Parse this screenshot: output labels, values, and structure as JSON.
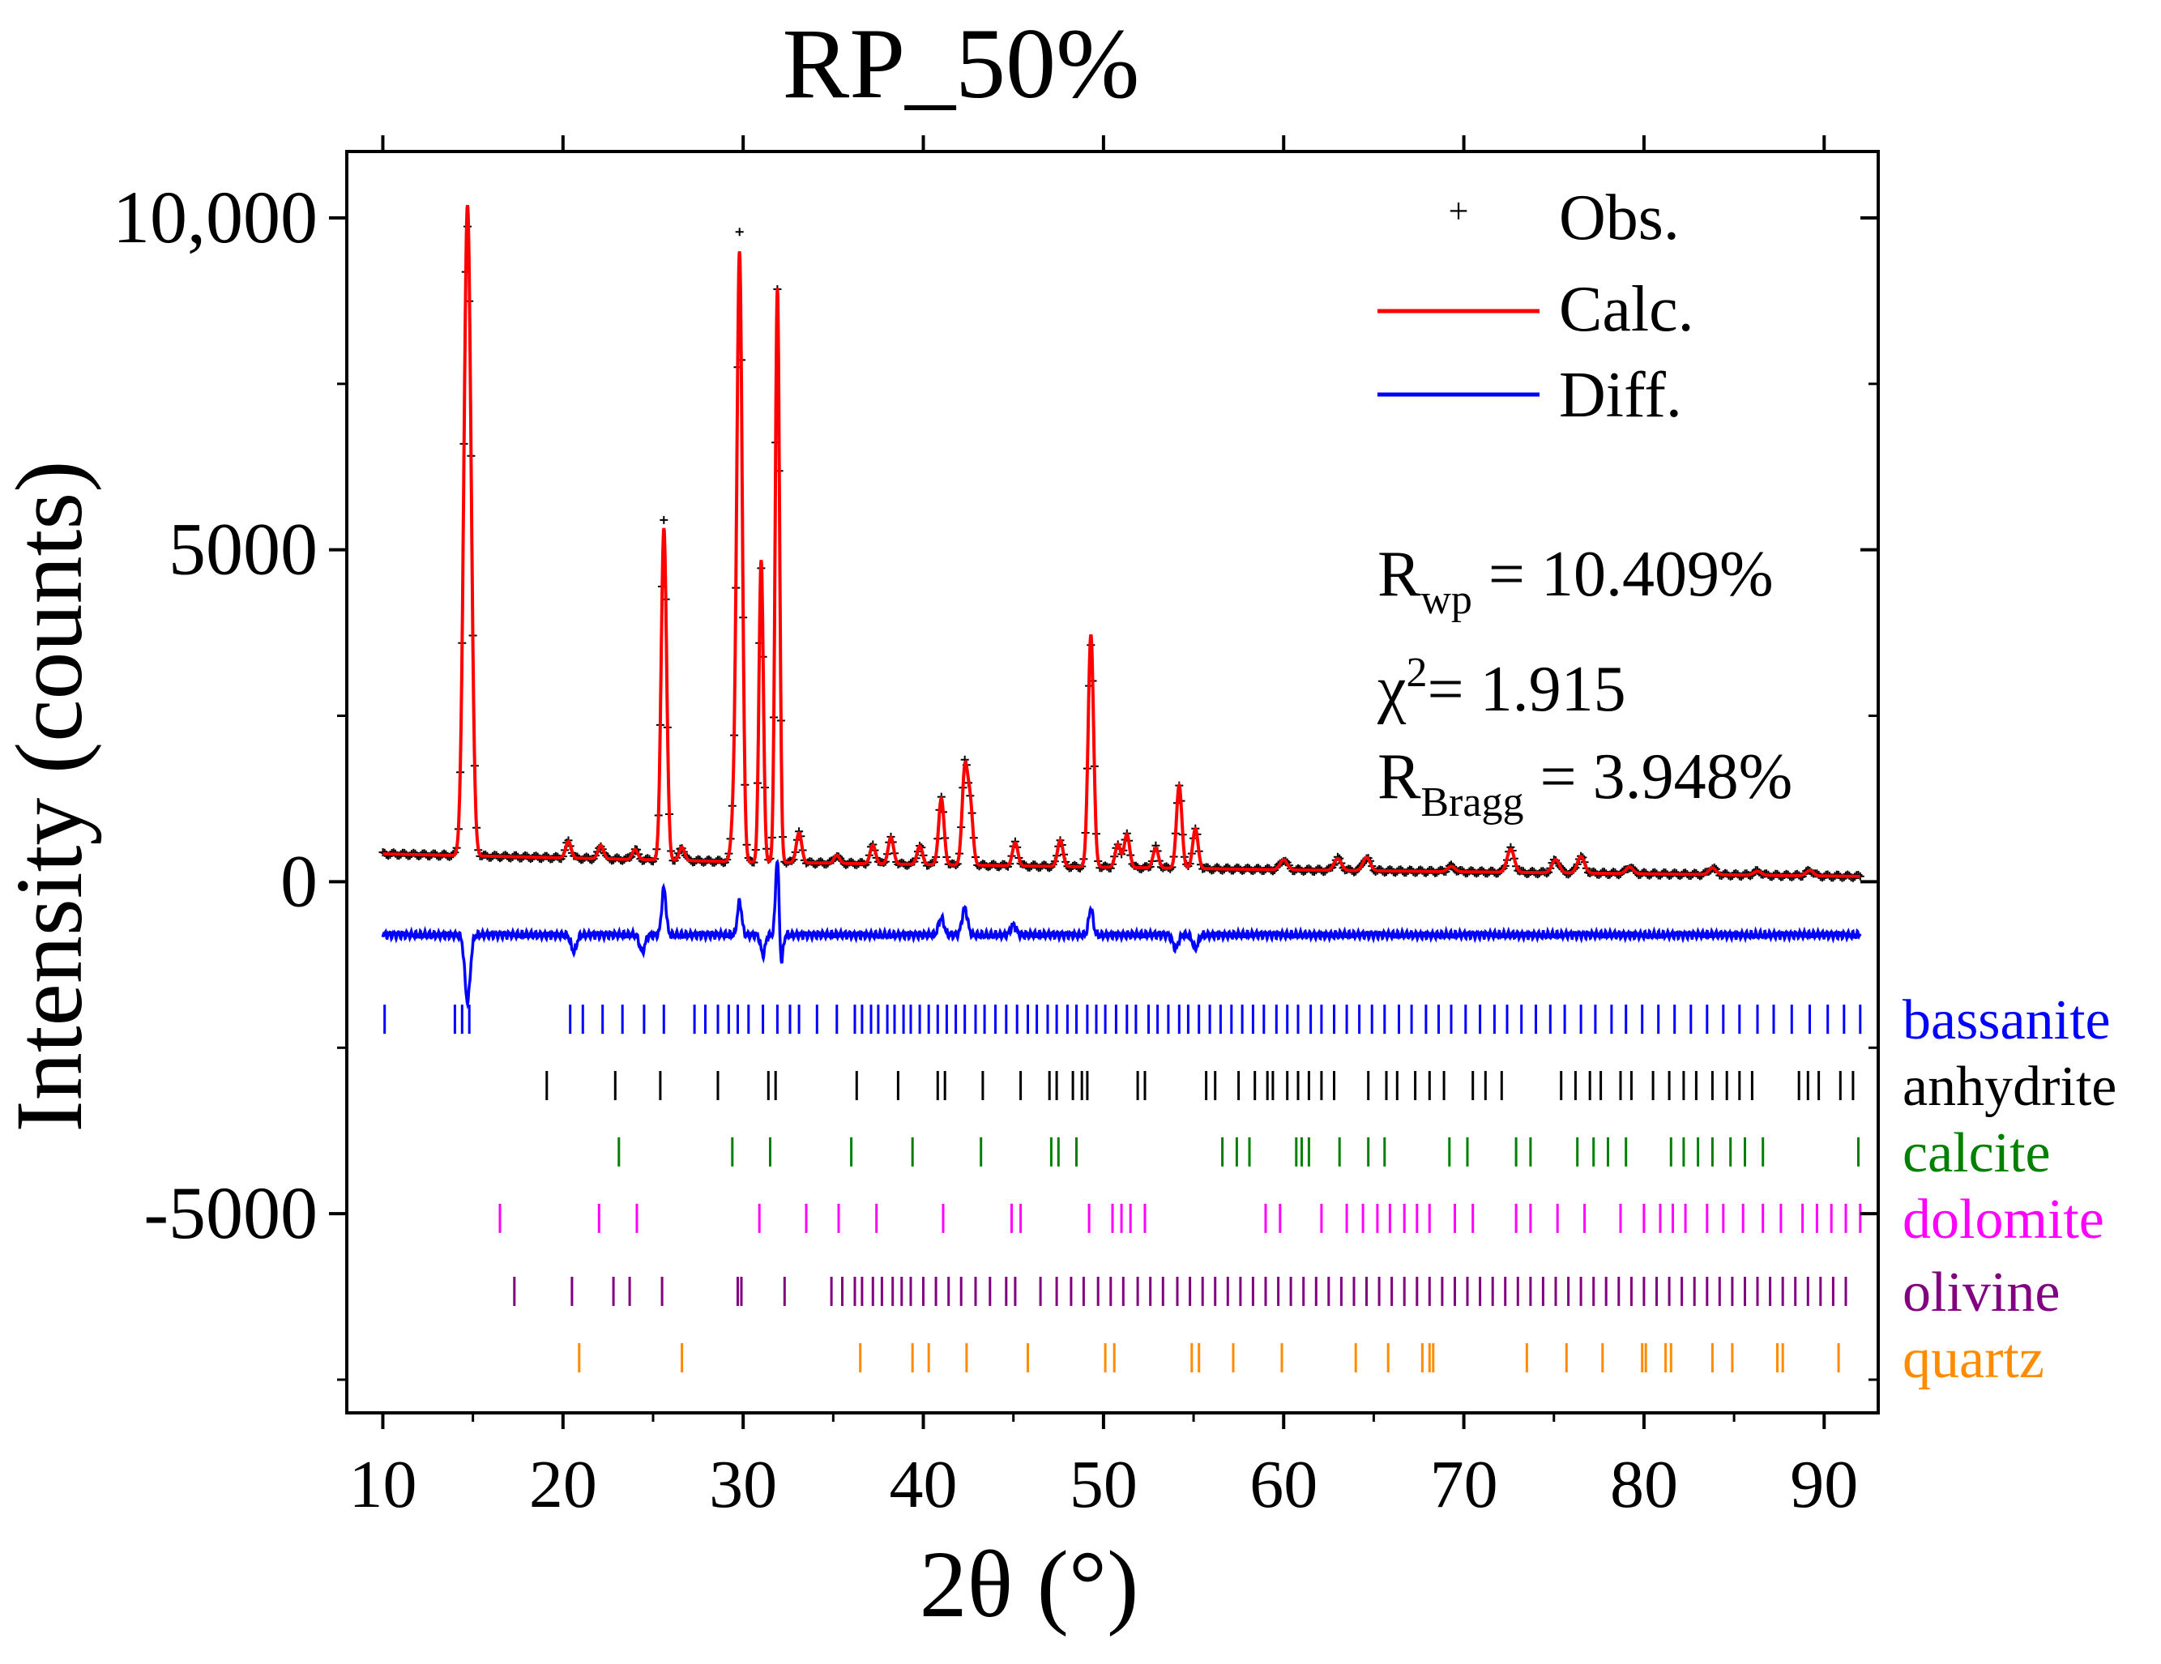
{
  "chart_data": {
    "type": "line",
    "title": "RP_50%",
    "xlabel": "2θ (°)",
    "ylabel": "Intensity (counts)",
    "xlim": [
      8,
      93
    ],
    "ylim": [
      -8000,
      11000
    ],
    "x_ticks": [
      "10",
      "20",
      "30",
      "40",
      "50",
      "60",
      "70",
      "80",
      "90"
    ],
    "x_tick_values": [
      10,
      20,
      30,
      40,
      50,
      60,
      70,
      80,
      90
    ],
    "y_ticks": [
      "10,000",
      "5000",
      "0",
      "-5000"
    ],
    "y_tick_values": [
      10000,
      5000,
      0,
      -5000
    ],
    "legend_position": "top-right",
    "series": [
      {
        "name": "Obs.",
        "color": "#000000",
        "marker": "+"
      },
      {
        "name": "Calc.",
        "color": "#ff0000"
      },
      {
        "name": "Diff.",
        "color": "#0000ff"
      }
    ],
    "annotations": {
      "rwp_main": "R",
      "rwp_sub": "wp",
      "rwp_value": " = 10.409%",
      "chi_main": "χ",
      "chi_sup": "2",
      "chi_value": "= 1.915",
      "rbragg_main": "R",
      "rbragg_sub": "Bragg",
      "rbragg_value": " = 3.948%"
    },
    "background": [
      [
        10,
        420
      ],
      [
        20,
        360
      ],
      [
        30,
        300
      ],
      [
        40,
        260
      ],
      [
        50,
        220
      ],
      [
        60,
        180
      ],
      [
        70,
        150
      ],
      [
        80,
        120
      ],
      [
        92,
        80
      ]
    ],
    "peaks": [
      [
        14.7,
        9800,
        0.2
      ],
      [
        20.3,
        250,
        0.15
      ],
      [
        22.1,
        200,
        0.15
      ],
      [
        24.0,
        150,
        0.15
      ],
      [
        25.6,
        5000,
        0.15
      ],
      [
        26.6,
        200,
        0.15
      ],
      [
        29.5,
        700,
        0.15
      ],
      [
        29.8,
        9100,
        0.15
      ],
      [
        31.0,
        4550,
        0.12
      ],
      [
        31.9,
        8650,
        0.12
      ],
      [
        33.1,
        450,
        0.15
      ],
      [
        35.2,
        120,
        0.15
      ],
      [
        37.2,
        280,
        0.15
      ],
      [
        38.2,
        400,
        0.15
      ],
      [
        39.8,
        280,
        0.15
      ],
      [
        41.0,
        1000,
        0.15
      ],
      [
        42.3,
        1400,
        0.15
      ],
      [
        42.6,
        900,
        0.15
      ],
      [
        45.1,
        350,
        0.15
      ],
      [
        47.6,
        400,
        0.15
      ],
      [
        49.3,
        3500,
        0.15
      ],
      [
        50.8,
        350,
        0.15
      ],
      [
        51.3,
        500,
        0.15
      ],
      [
        52.9,
        300,
        0.15
      ],
      [
        54.2,
        1250,
        0.15
      ],
      [
        55.1,
        600,
        0.15
      ],
      [
        60.0,
        150,
        0.2
      ],
      [
        63.0,
        180,
        0.2
      ],
      [
        64.6,
        200,
        0.2
      ],
      [
        69.3,
        80,
        0.2
      ],
      [
        72.6,
        350,
        0.2
      ],
      [
        75.1,
        200,
        0.2
      ],
      [
        76.5,
        250,
        0.2
      ],
      [
        79.2,
        100,
        0.2
      ],
      [
        83.8,
        100,
        0.2
      ],
      [
        86.3,
        60,
        0.2
      ],
      [
        89.2,
        80,
        0.2
      ]
    ],
    "diff_offset": -800,
    "diff_features": [
      [
        14.7,
        -1000,
        0.15
      ],
      [
        20.6,
        -250,
        0.15
      ],
      [
        24.4,
        -250,
        0.15
      ],
      [
        25.6,
        700,
        0.12
      ],
      [
        29.8,
        500,
        0.12
      ],
      [
        31.1,
        -300,
        0.12
      ],
      [
        31.9,
        1200,
        0.1
      ],
      [
        32.1,
        -500,
        0.1
      ],
      [
        41.0,
        250,
        0.15
      ],
      [
        42.3,
        400,
        0.15
      ],
      [
        45.0,
        150,
        0.15
      ],
      [
        49.3,
        400,
        0.12
      ],
      [
        54.0,
        -200,
        0.15
      ],
      [
        55.1,
        -200,
        0.15
      ]
    ],
    "phases": [
      {
        "name": "bassanite",
        "color": "#0000ff",
        "y": -2070,
        "positions": [
          10.1,
          14.0,
          14.4,
          14.8,
          20.4,
          21.1,
          22.2,
          23.3,
          24.5,
          25.6,
          27.3,
          27.9,
          28.6,
          29.2,
          29.7,
          30.3,
          31.1,
          31.9,
          32.6,
          33.1,
          34.1,
          35.2,
          36.2,
          36.6,
          37.1,
          37.5,
          38.0,
          38.4,
          38.9,
          39.3,
          39.8,
          40.3,
          40.8,
          41.3,
          41.8,
          42.3,
          42.9,
          43.4,
          44.0,
          44.6,
          45.2,
          45.8,
          46.3,
          46.9,
          47.4,
          48.0,
          48.5,
          49.1,
          49.6,
          50.1,
          50.7,
          51.3,
          51.8,
          52.5,
          53.0,
          53.6,
          54.2,
          54.7,
          55.3,
          55.9,
          56.5,
          57.1,
          57.7,
          58.3,
          58.9,
          59.6,
          60.2,
          60.8,
          61.5,
          62.1,
          62.8,
          63.5,
          64.2,
          64.9,
          65.6,
          66.4,
          67.1,
          67.9,
          68.6,
          69.3,
          70.1,
          70.9,
          71.7,
          72.4,
          73.2,
          74.0,
          74.8,
          75.6,
          76.5,
          77.3,
          78.2,
          79.0,
          79.9,
          80.8,
          81.7,
          82.6,
          83.5,
          84.4,
          85.3,
          86.3,
          87.2,
          88.2,
          89.2,
          90.2,
          91.1,
          92.0
        ]
      },
      {
        "name": "anhydrite",
        "color": "#000000",
        "y": -3070,
        "positions": [
          19.1,
          22.9,
          25.4,
          28.6,
          31.4,
          31.8,
          36.3,
          38.6,
          40.8,
          41.2,
          43.3,
          45.4,
          47.0,
          47.4,
          48.3,
          48.8,
          49.1,
          51.9,
          52.3,
          55.7,
          56.2,
          57.5,
          58.4,
          59.1,
          59.4,
          60.2,
          60.8,
          61.4,
          62.1,
          62.8,
          64.7,
          65.7,
          66.3,
          67.3,
          68.1,
          68.9,
          70.5,
          71.2,
          72.1,
          75.4,
          76.2,
          77.0,
          77.6,
          78.7,
          79.3,
          80.5,
          81.4,
          82.2,
          82.9,
          83.8,
          84.6,
          85.3,
          86.0,
          88.6,
          89.1,
          89.7,
          90.9,
          91.6
        ]
      },
      {
        "name": "calcite",
        "color": "#008000",
        "y": -4070,
        "positions": [
          23.1,
          29.4,
          31.5,
          36.0,
          39.4,
          43.2,
          47.1,
          47.5,
          48.5,
          56.6,
          57.4,
          58.1,
          60.7,
          61.0,
          61.4,
          63.1,
          64.7,
          65.6,
          69.2,
          70.2,
          72.9,
          73.7,
          76.3,
          77.2,
          78.0,
          79.0,
          81.5,
          82.2,
          83.0,
          83.8,
          84.8,
          85.6,
          86.6,
          91.9
        ]
      },
      {
        "name": "dolomite",
        "color": "#ff00ff",
        "y": -5070,
        "positions": [
          16.5,
          22.0,
          24.1,
          30.9,
          33.5,
          35.3,
          37.4,
          41.1,
          44.9,
          45.4,
          49.2,
          50.5,
          51.0,
          51.5,
          52.3,
          59.0,
          59.8,
          62.1,
          63.5,
          64.4,
          65.2,
          65.9,
          66.7,
          67.4,
          68.1,
          69.5,
          70.5,
          72.9,
          73.7,
          75.2,
          76.7,
          78.7,
          80.0,
          80.9,
          81.6,
          82.3,
          83.5,
          84.4,
          85.5,
          86.6,
          87.6,
          88.8,
          89.6,
          90.4,
          91.2,
          92.0
        ]
      },
      {
        "name": "olivine",
        "color": "#800080",
        "y": -6170,
        "positions": [
          17.3,
          20.5,
          22.8,
          23.7,
          25.5,
          29.7,
          29.9,
          32.3,
          34.9,
          35.5,
          36.2,
          36.6,
          37.2,
          37.7,
          38.3,
          38.8,
          39.3,
          40.0,
          40.7,
          41.4,
          42.1,
          42.9,
          43.7,
          44.6,
          45.1,
          46.5,
          47.4,
          48.2,
          48.9,
          49.7,
          50.4,
          51.1,
          51.9,
          52.6,
          53.3,
          54.1,
          54.8,
          55.5,
          56.2,
          56.9,
          57.6,
          58.3,
          59.0,
          59.7,
          60.4,
          61.1,
          61.8,
          62.5,
          63.2,
          63.9,
          64.6,
          65.3,
          66.0,
          66.7,
          67.4,
          68.1,
          68.8,
          69.5,
          70.2,
          70.9,
          71.6,
          72.3,
          73.0,
          73.7,
          74.4,
          75.1,
          75.8,
          76.5,
          77.2,
          77.9,
          78.6,
          79.3,
          80.0,
          80.7,
          81.4,
          82.1,
          82.8,
          83.5,
          84.2,
          84.9,
          85.6,
          86.3,
          87.0,
          87.7,
          88.4,
          89.1,
          89.8,
          90.5,
          91.2
        ]
      },
      {
        "name": "quartz",
        "color": "#ff8c00",
        "y": -7170,
        "positions": [
          20.9,
          26.6,
          36.5,
          39.4,
          40.3,
          42.4,
          45.8,
          50.1,
          50.6,
          54.9,
          55.3,
          57.2,
          59.9,
          64.0,
          65.8,
          67.7,
          68.1,
          68.3,
          73.5,
          75.7,
          77.7,
          79.9,
          80.1,
          81.2,
          81.5,
          83.8,
          84.9,
          87.4,
          87.7,
          90.8
        ]
      }
    ]
  }
}
